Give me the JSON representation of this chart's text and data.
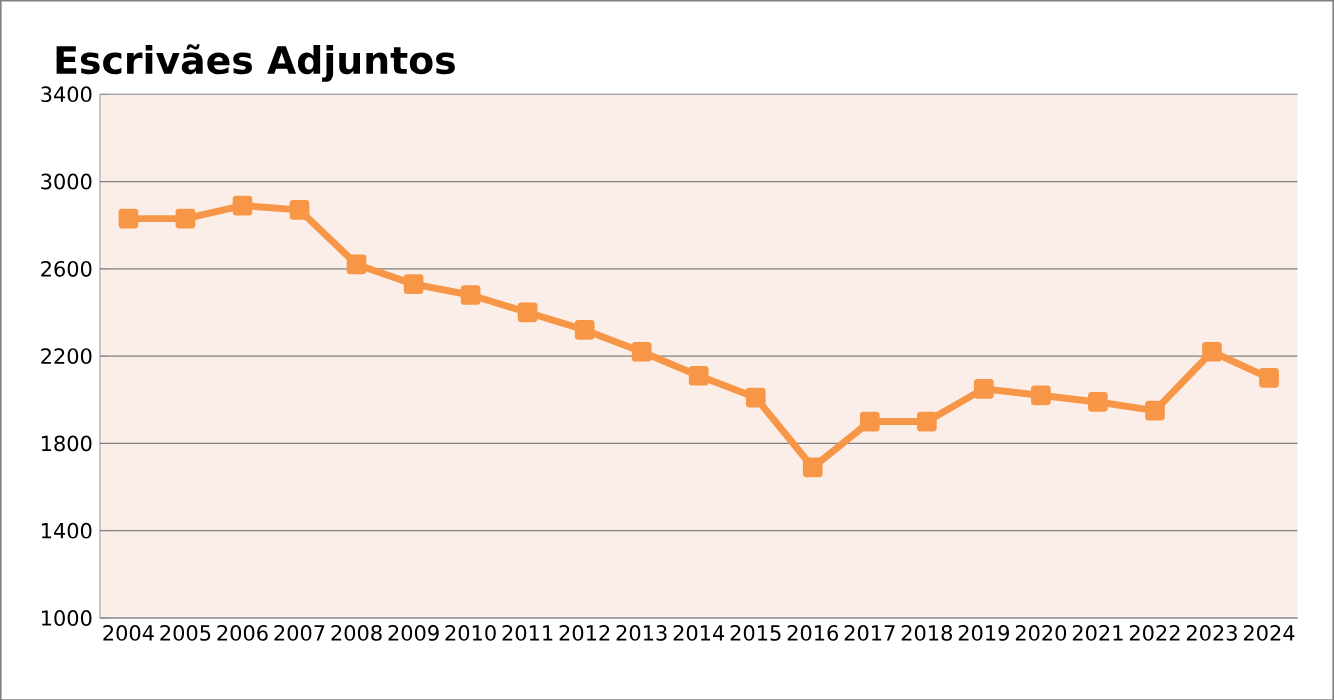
{
  "chart_data": {
    "type": "line",
    "title": "Escrivães Adjuntos",
    "categories": [
      "2004",
      "2005",
      "2006",
      "2007",
      "2008",
      "2009",
      "2010",
      "2011",
      "2012",
      "2013",
      "2014",
      "2015",
      "2016",
      "2017",
      "2018",
      "2019",
      "2020",
      "2021",
      "2022",
      "2023",
      "2024"
    ],
    "series": [
      {
        "color": "#f79646",
        "values": [
          2830,
          2830,
          2890,
          2870,
          2620,
          2530,
          2480,
          2400,
          2320,
          2220,
          2110,
          2010,
          1690,
          1900,
          1900,
          2050,
          2020,
          1990,
          1950,
          2220,
          2100
        ]
      }
    ],
    "ylim": [
      1000,
      3400
    ],
    "yticks": [
      1000,
      1400,
      1800,
      2200,
      2600,
      3000,
      3400
    ],
    "grid": "y",
    "marker": "square",
    "line_style": "solid"
  }
}
